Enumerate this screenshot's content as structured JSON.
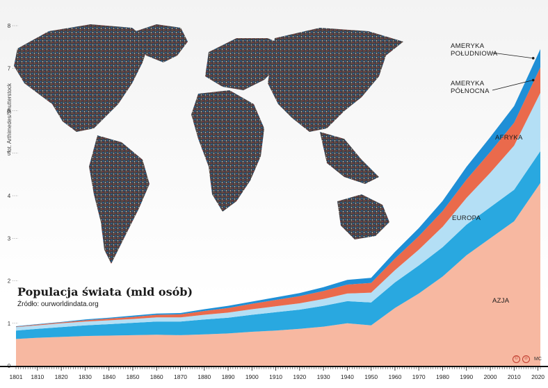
{
  "header": {
    "title": "Populacja świata (mld osób)",
    "source": "Źródło: ourworldindata.org",
    "photo_credit": "fot. Arthimedes/Shutterstock",
    "author": "MC",
    "license_icons": [
      "copyright-icon",
      "paragraph-icon"
    ]
  },
  "chart_data": {
    "type": "area",
    "title": "Populacja świata (mld osób)",
    "xlabel": "",
    "ylabel": "",
    "ylim": [
      0,
      8
    ],
    "xlim": [
      1801,
      2021
    ],
    "y_ticks": [
      "0",
      "1",
      "2",
      "3",
      "4",
      "5",
      "6",
      "7",
      "8"
    ],
    "x_ticks": [
      "1801",
      "1810",
      "1820",
      "1830",
      "1840",
      "1850",
      "1860",
      "1870",
      "1880",
      "1890",
      "1900",
      "1910",
      "1920",
      "1930",
      "1940",
      "1950",
      "1960",
      "1970",
      "1980",
      "1990",
      "2000",
      "2010",
      "2020"
    ],
    "x": [
      1801,
      1810,
      1820,
      1830,
      1840,
      1850,
      1860,
      1870,
      1880,
      1890,
      1900,
      1910,
      1920,
      1930,
      1940,
      1950,
      1960,
      1970,
      1980,
      1990,
      2000,
      2010,
      2021
    ],
    "stacked": true,
    "grid": false,
    "series": [
      {
        "name": "AZJA",
        "color": "#f7b8a1",
        "values": [
          0.63,
          0.66,
          0.68,
          0.7,
          0.71,
          0.72,
          0.73,
          0.72,
          0.74,
          0.76,
          0.8,
          0.83,
          0.87,
          0.92,
          1.0,
          0.95,
          1.36,
          1.7,
          2.1,
          2.6,
          3.0,
          3.4,
          4.3
        ]
      },
      {
        "name": "EUROPA",
        "color": "#29a8e0",
        "values": [
          0.2,
          0.21,
          0.23,
          0.25,
          0.27,
          0.29,
          0.31,
          0.32,
          0.35,
          0.37,
          0.4,
          0.43,
          0.45,
          0.49,
          0.52,
          0.54,
          0.6,
          0.66,
          0.69,
          0.72,
          0.73,
          0.74,
          0.75
        ]
      },
      {
        "name": "AFRYKA",
        "color": "#b4dff5",
        "values": [
          0.08,
          0.08,
          0.09,
          0.09,
          0.09,
          0.09,
          0.1,
          0.1,
          0.11,
          0.12,
          0.13,
          0.14,
          0.15,
          0.16,
          0.18,
          0.23,
          0.29,
          0.37,
          0.48,
          0.63,
          0.81,
          1.04,
          1.37
        ]
      },
      {
        "name": "AMERYKA PÓŁNOCNA",
        "color": "#ea6a4c",
        "values": [
          0.01,
          0.02,
          0.02,
          0.03,
          0.04,
          0.05,
          0.06,
          0.07,
          0.09,
          0.11,
          0.13,
          0.15,
          0.17,
          0.19,
          0.21,
          0.23,
          0.27,
          0.32,
          0.37,
          0.43,
          0.49,
          0.54,
          0.6
        ]
      },
      {
        "name": "AMERYKA POŁUDNIOWA",
        "color": "#1f8fd6",
        "values": [
          0.01,
          0.01,
          0.01,
          0.02,
          0.02,
          0.03,
          0.03,
          0.03,
          0.04,
          0.05,
          0.05,
          0.06,
          0.07,
          0.09,
          0.11,
          0.12,
          0.16,
          0.19,
          0.24,
          0.3,
          0.35,
          0.39,
          0.43
        ]
      }
    ],
    "labels": [
      {
        "text": "AMERYKA",
        "series": "AMERYKA POŁUDNIOWA"
      },
      {
        "text": "POŁUDNIOWA",
        "series": "AMERYKA POŁUDNIOWA"
      },
      {
        "text": "AMERYKA",
        "series": "AMERYKA PÓŁNOCNA"
      },
      {
        "text": "PÓŁNOCNA",
        "series": "AMERYKA PÓŁNOCNA"
      },
      {
        "text": "AFRYKA",
        "series": "AFRYKA"
      },
      {
        "text": "EUROPA",
        "series": "EUROPA"
      },
      {
        "text": "AZJA",
        "series": "AZJA"
      }
    ]
  }
}
